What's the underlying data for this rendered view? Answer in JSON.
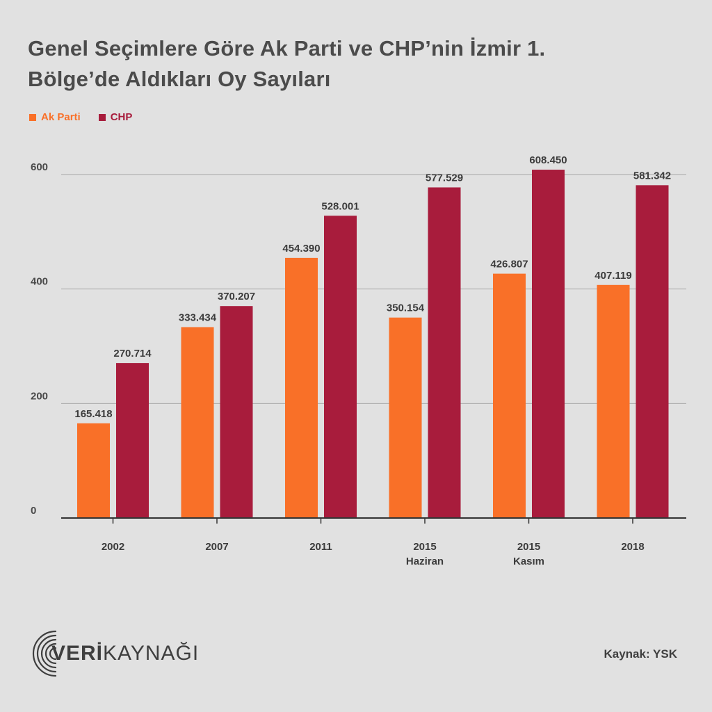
{
  "header": {
    "title_line1": "Genel Seçimlere Göre Ak Parti ve CHP’nin İzmir 1.",
    "title_line2": "Bölge’de Aldıkları Oy Sayıları"
  },
  "colors": {
    "ak_parti": "#f97028",
    "chp": "#a81c3c",
    "grid": "#a8a8a8",
    "axis": "#333333"
  },
  "chart_data": {
    "type": "bar",
    "categories": [
      "2002",
      "2007",
      "2011",
      "2015 Haziran",
      "2015 Kasım",
      "2018"
    ],
    "category_lines": [
      [
        "2002"
      ],
      [
        "2007"
      ],
      [
        "2011"
      ],
      [
        "2015",
        "Haziran"
      ],
      [
        "2015",
        "Kasım"
      ],
      [
        "2018"
      ]
    ],
    "series": [
      {
        "name": "Ak Parti",
        "values": [
          165.418,
          333.434,
          454.39,
          350.154,
          426.807,
          407.119
        ],
        "labels": [
          "165.418",
          "333.434",
          "454.390",
          "350.154",
          "426.807",
          "407.119"
        ]
      },
      {
        "name": "CHP",
        "values": [
          270.714,
          370.207,
          528.001,
          577.529,
          608.45,
          581.342
        ],
        "labels": [
          "270.714",
          "370.207",
          "528.001",
          "577.529",
          "608.450",
          "581.342"
        ]
      }
    ],
    "yticks": [
      0,
      200,
      400,
      600
    ],
    "ylim": [
      0,
      600
    ],
    "grid": true,
    "legend": "top-left"
  },
  "legend": {
    "ak_parti_label": "Ak Parti",
    "chp_label": "CHP"
  },
  "footer": {
    "source": "Kaynak: YSK",
    "logo_text_bold": "VERİ",
    "logo_text_light": "KAYNAĞI"
  }
}
